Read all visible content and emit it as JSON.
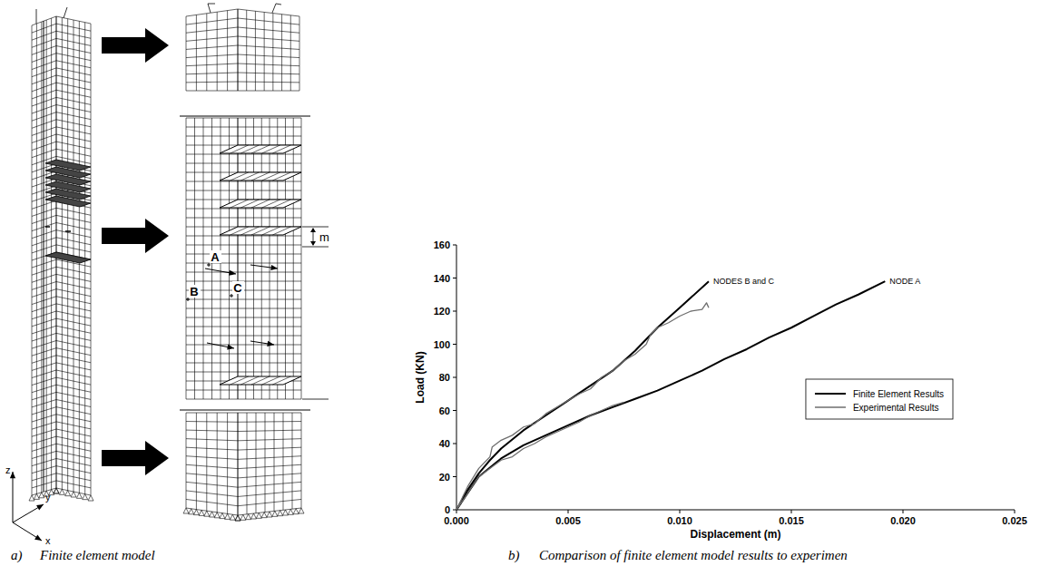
{
  "chart_data": {
    "type": "line",
    "x_label": "Displacement (m)",
    "y_label": "Load (KN)",
    "xlim": [
      0,
      0.025
    ],
    "ylim": [
      0,
      160
    ],
    "xticks": [
      {
        "value": 0,
        "label": "0.000"
      },
      {
        "value": 0.005,
        "label": "0.005"
      },
      {
        "value": 0.01,
        "label": "0.010"
      },
      {
        "value": 0.015,
        "label": "0.015"
      },
      {
        "value": 0.02,
        "label": "0.020"
      },
      {
        "value": 0.025,
        "label": "0.025"
      }
    ],
    "yticks": [
      0,
      20,
      40,
      60,
      80,
      100,
      120,
      140,
      160
    ],
    "legend": "lower right",
    "series": [
      {
        "name": "Finite Element Results",
        "color": "#000000",
        "x": [
          0,
          0.0005,
          0.001,
          0.0015,
          0.002,
          0.003,
          0.004,
          0.005,
          0.006,
          0.007,
          0.008,
          0.009,
          0.01,
          0.0113
        ],
        "values": [
          0,
          12,
          22,
          30,
          37,
          48,
          57,
          66,
          75,
          84,
          96,
          110,
          122,
          138
        ]
      },
      {
        "name": "Finite Element Results",
        "color": "#000000",
        "x": [
          0,
          0.001,
          0.002,
          0.003,
          0.004,
          0.005,
          0.006,
          0.007,
          0.008,
          0.009,
          0.01,
          0.011,
          0.012,
          0.013,
          0.014,
          0.015,
          0.016,
          0.017,
          0.018,
          0.0192
        ],
        "values": [
          0,
          20,
          31,
          39,
          45,
          51,
          57,
          62,
          67,
          72,
          78,
          84,
          91,
          97,
          104,
          110,
          117,
          124,
          130,
          138
        ]
      },
      {
        "name": "Experimental Results",
        "color": "#6e6e6e",
        "x": [
          0,
          0.0005,
          0.001,
          0.0015,
          0.0016,
          0.002,
          0.0025,
          0.003,
          0.0035,
          0.004,
          0.005,
          0.0055,
          0.006,
          0.0065,
          0.007,
          0.0075,
          0.008,
          0.0085,
          0.0087,
          0.009,
          0.0095,
          0.01,
          0.0105,
          0.011,
          0.0112,
          0.0113
        ],
        "values": [
          0,
          14,
          25,
          32,
          38,
          42,
          45,
          50,
          52,
          58,
          66,
          70,
          73,
          80,
          84,
          90,
          94,
          100,
          106,
          110,
          113,
          117,
          120,
          121,
          125,
          122
        ]
      },
      {
        "name": "Experimental Results",
        "color": "#6e6e6e",
        "x": [
          0,
          0.001,
          0.002,
          0.0025,
          0.003,
          0.0035,
          0.004,
          0.0045,
          0.005,
          0.0055,
          0.006,
          0.0065,
          0.007,
          0.0075
        ],
        "values": [
          0,
          20,
          30,
          32,
          37,
          40,
          44,
          47,
          50,
          53,
          57,
          60,
          63,
          65
        ]
      }
    ],
    "annotations": [
      {
        "text": "NODES B and C",
        "x": 0.0113,
        "y": 138
      },
      {
        "text": "NODE A",
        "x": 0.0192,
        "y": 138
      }
    ]
  },
  "diagram": {
    "nodes": [
      {
        "label": "A"
      },
      {
        "label": "B"
      },
      {
        "label": "C"
      }
    ],
    "dimension": "m",
    "axes": [
      "z",
      "y",
      "x"
    ]
  },
  "captions": [
    {
      "letter": "a)",
      "text": "Finite element model"
    },
    {
      "letter": "b)",
      "text": "Comparison of finite element model results to experimen"
    }
  ]
}
